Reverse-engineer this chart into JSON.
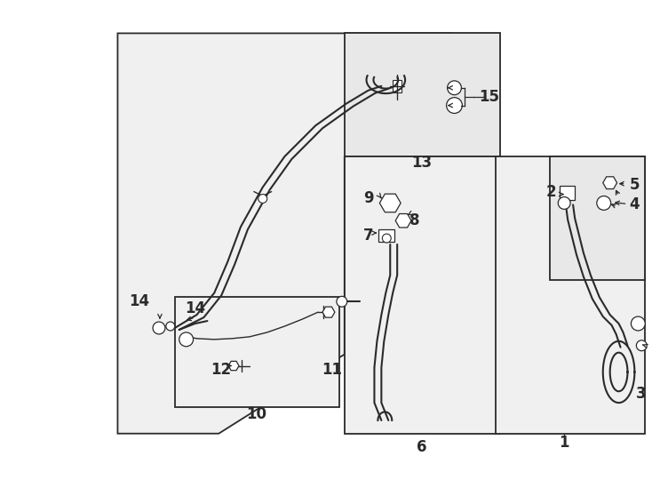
{
  "bg_color": "#ffffff",
  "line_color": "#2a2a2a",
  "fig_width": 7.34,
  "fig_height": 5.4,
  "dpi": 100
}
